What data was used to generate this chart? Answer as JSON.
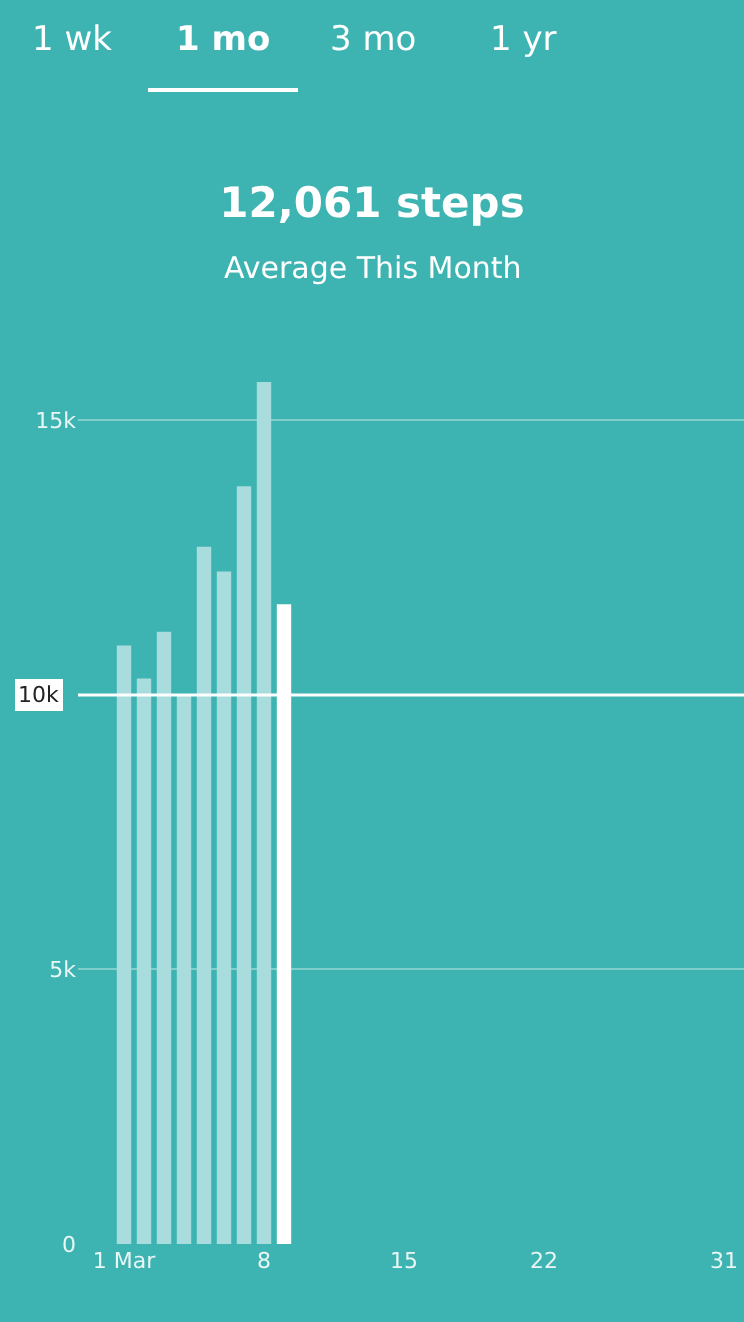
{
  "chart_data": {
    "type": "bar",
    "title": "12,061 steps",
    "subtitle": "Average This Month",
    "annotations": [
      "1 wk",
      "1 mo",
      "3 mo",
      "1 yr"
    ],
    "x": [
      1,
      2,
      3,
      4,
      5,
      6,
      7,
      8,
      9
    ],
    "values": [
      10900,
      10300,
      11150,
      10000,
      12700,
      12250,
      13800,
      15700,
      11650
    ],
    "colors": [
      "#a9dcdc",
      "#a9dcdc",
      "#a9dcdc",
      "#a9dcdc",
      "#a9dcdc",
      "#a9dcdc",
      "#a9dcdc",
      "#a9dcdc",
      "#ffffff"
    ],
    "xlim": [
      -1.3,
      32
    ],
    "xticks": [
      {
        "value": 1,
        "label": "1 Mar"
      },
      8,
      15,
      22,
      31
    ],
    "ylim": [
      0,
      15700
    ],
    "yticks": [
      0,
      {
        "value": 5000,
        "label": "5k"
      },
      {
        "value": 15000,
        "label": "15k"
      }
    ],
    "ref_lines": [
      {
        "axis": "y",
        "value": 10000,
        "label": "10k",
        "color": "#ffffff"
      }
    ],
    "grid": "y",
    "legend": false
  }
}
